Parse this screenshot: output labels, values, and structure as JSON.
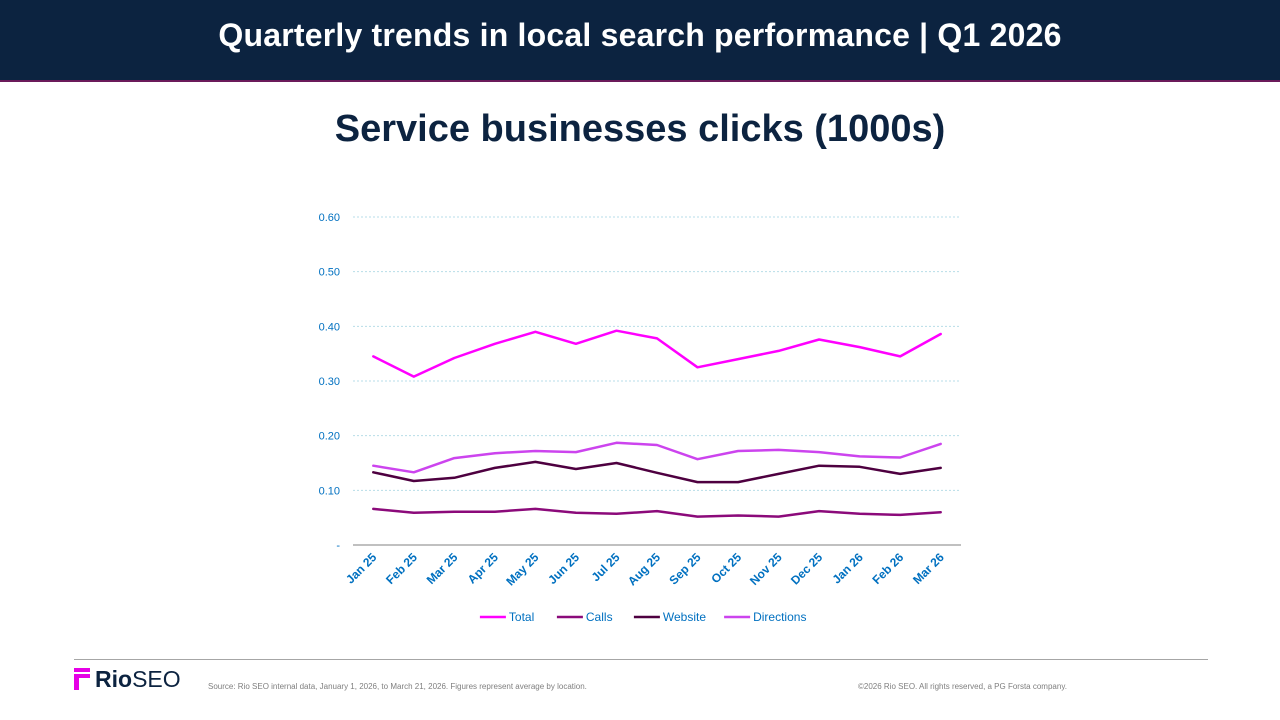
{
  "header": {
    "title": "Quarterly trends in local search performance  |  Q1 2026"
  },
  "footer": {
    "logo_bold": "Rio",
    "logo_light": "SEO",
    "source": "Source: Rio SEO internal data, January 1, 2026, to March 21, 2026. Figures represent average by location.",
    "copyright": "©2026 Rio SEO. All rights reserved, a PG Forsta company."
  },
  "colors": {
    "header_bg": "#0c2340",
    "logo_mark": "#e600e6"
  },
  "chart_data": {
    "type": "line",
    "title": "Service businesses clicks (1000s)",
    "categories": [
      "Jan 25",
      "Feb 25",
      "Mar 25",
      "Apr 25",
      "May 25",
      "Jun 25",
      "Jul 25",
      "Aug 25",
      "Sep 25",
      "Oct 25",
      "Nov 25",
      "Dec 25",
      "Jan 26",
      "Feb 26",
      "Mar 26"
    ],
    "ylim": [
      0,
      0.6
    ],
    "yticks": [
      0,
      0.1,
      0.2,
      0.3,
      0.4,
      0.5,
      0.6
    ],
    "ytick_labels": [
      "-",
      "0.10",
      "0.20",
      "0.30",
      "0.40",
      "0.50",
      "0.60"
    ],
    "grid": true,
    "legend_position": "bottom",
    "series": [
      {
        "name": "Total",
        "color": "#ff00ff",
        "values": [
          0.345,
          0.308,
          0.342,
          0.368,
          0.39,
          0.368,
          0.392,
          0.378,
          0.325,
          0.34,
          0.355,
          0.376,
          0.362,
          0.345,
          0.386
        ]
      },
      {
        "name": "Calls",
        "color": "#8b0a7a",
        "values": [
          0.066,
          0.059,
          0.061,
          0.061,
          0.066,
          0.059,
          0.057,
          0.062,
          0.052,
          0.054,
          0.052,
          0.062,
          0.057,
          0.055,
          0.06
        ]
      },
      {
        "name": "Website",
        "color": "#4e0040",
        "values": [
          0.133,
          0.117,
          0.123,
          0.141,
          0.152,
          0.139,
          0.15,
          0.132,
          0.115,
          0.115,
          0.13,
          0.145,
          0.143,
          0.13,
          0.141
        ]
      },
      {
        "name": "Directions",
        "color": "#cc44ee",
        "values": [
          0.145,
          0.133,
          0.159,
          0.168,
          0.172,
          0.17,
          0.187,
          0.183,
          0.157,
          0.172,
          0.174,
          0.17,
          0.162,
          0.16,
          0.185
        ]
      }
    ]
  }
}
